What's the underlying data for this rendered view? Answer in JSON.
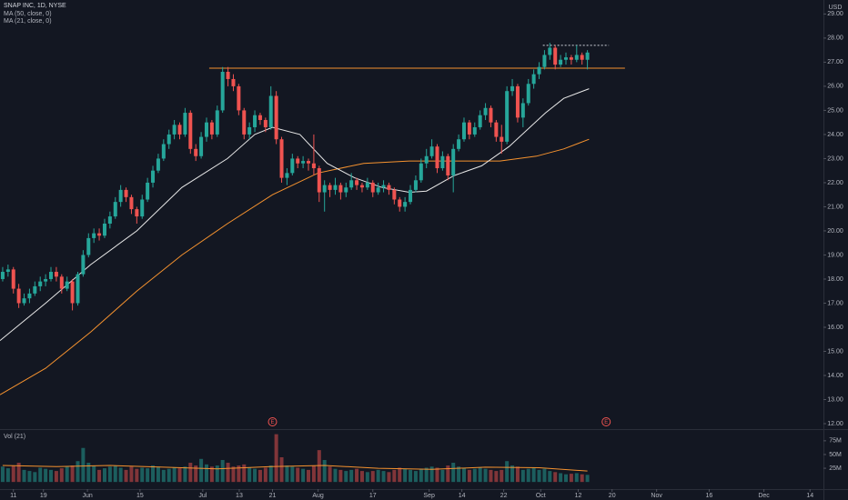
{
  "chart_data": {
    "type": "candlestick",
    "title": "SNAP INC, 1D, NYSE",
    "currency": "USD",
    "up_color": "#26a69a",
    "down_color": "#ef5350",
    "grid": false,
    "xlim": [
      -0.5,
      153
    ],
    "xticks": [
      {
        "value": 2,
        "label": "11"
      },
      {
        "value": 7.6,
        "label": "19"
      },
      {
        "value": 15.8,
        "label": "Jun"
      },
      {
        "value": 25.6,
        "label": "15"
      },
      {
        "value": 37.3,
        "label": "Jul"
      },
      {
        "value": 44.1,
        "label": "13"
      },
      {
        "value": 50.3,
        "label": "21"
      },
      {
        "value": 58.8,
        "label": "Aug"
      },
      {
        "value": 69,
        "label": "17"
      },
      {
        "value": 79.5,
        "label": "Sep"
      },
      {
        "value": 85.6,
        "label": "14"
      },
      {
        "value": 93.4,
        "label": "22"
      },
      {
        "value": 100.3,
        "label": "Oct"
      },
      {
        "value": 107.3,
        "label": "12"
      },
      {
        "value": 113.6,
        "label": "20"
      },
      {
        "value": 121.9,
        "label": "Nov"
      },
      {
        "value": 131.7,
        "label": "16"
      },
      {
        "value": 141.9,
        "label": "Dec"
      },
      {
        "value": 150.5,
        "label": "14"
      }
    ],
    "ylim": [
      11.85,
      29.58
    ],
    "yticks": [
      {
        "value": 12,
        "label": "12.00"
      },
      {
        "value": 13,
        "label": "13.00"
      },
      {
        "value": 14,
        "label": "14.00"
      },
      {
        "value": 15,
        "label": "15.00"
      },
      {
        "value": 16,
        "label": "16.00"
      },
      {
        "value": 17,
        "label": "17.00"
      },
      {
        "value": 18,
        "label": "18.00"
      },
      {
        "value": 19,
        "label": "19.00"
      },
      {
        "value": 20,
        "label": "20.00"
      },
      {
        "value": 21,
        "label": "21.00"
      },
      {
        "value": 22,
        "label": "22.00"
      },
      {
        "value": 23,
        "label": "23.00"
      },
      {
        "value": 24,
        "label": "24.00"
      },
      {
        "value": 25,
        "label": "25.00"
      },
      {
        "value": 26,
        "label": "26.00"
      },
      {
        "value": 27,
        "label": "27.00"
      },
      {
        "value": 28,
        "label": "28.00"
      },
      {
        "value": 29,
        "label": "29.00"
      }
    ],
    "candles": [
      [
        18.0,
        18.5,
        17.9,
        18.3
      ],
      [
        18.3,
        18.6,
        18.1,
        18.4
      ],
      [
        18.4,
        18.5,
        17.4,
        17.6
      ],
      [
        17.6,
        17.8,
        16.8,
        17.0
      ],
      [
        17.0,
        17.4,
        16.9,
        17.2
      ],
      [
        17.2,
        17.6,
        17.0,
        17.4
      ],
      [
        17.4,
        17.9,
        17.3,
        17.7
      ],
      [
        17.7,
        18.1,
        17.5,
        17.9
      ],
      [
        17.9,
        18.2,
        17.7,
        18.0
      ],
      [
        18.0,
        18.5,
        17.9,
        18.3
      ],
      [
        18.3,
        18.5,
        17.9,
        18.1
      ],
      [
        18.1,
        18.2,
        17.4,
        17.6
      ],
      [
        17.6,
        18.1,
        17.5,
        17.9
      ],
      [
        17.9,
        18.0,
        16.7,
        17.0
      ],
      [
        17.0,
        18.3,
        16.9,
        18.2
      ],
      [
        18.2,
        19.2,
        18.1,
        19.0
      ],
      [
        19.0,
        19.9,
        18.9,
        19.7
      ],
      [
        19.7,
        20.1,
        19.5,
        19.9
      ],
      [
        19.9,
        20.1,
        19.6,
        19.8
      ],
      [
        19.8,
        20.5,
        19.7,
        20.3
      ],
      [
        20.3,
        20.8,
        20.1,
        20.6
      ],
      [
        20.6,
        21.4,
        20.5,
        21.2
      ],
      [
        21.2,
        21.9,
        21.0,
        21.7
      ],
      [
        21.7,
        21.8,
        21.2,
        21.4
      ],
      [
        21.4,
        21.5,
        20.7,
        20.9
      ],
      [
        20.9,
        21.0,
        20.3,
        20.6
      ],
      [
        20.6,
        21.5,
        20.5,
        21.3
      ],
      [
        21.3,
        22.2,
        21.2,
        22.0
      ],
      [
        22.0,
        22.7,
        21.8,
        22.5
      ],
      [
        22.5,
        23.2,
        22.4,
        23.0
      ],
      [
        23.0,
        23.8,
        22.9,
        23.6
      ],
      [
        23.6,
        24.2,
        23.4,
        24.0
      ],
      [
        24.0,
        24.6,
        23.8,
        24.4
      ],
      [
        24.4,
        24.5,
        23.8,
        24.0
      ],
      [
        24.0,
        25.1,
        23.9,
        24.9
      ],
      [
        24.9,
        25.0,
        23.2,
        23.4
      ],
      [
        23.4,
        23.6,
        22.9,
        23.1
      ],
      [
        23.1,
        24.1,
        23.0,
        23.9
      ],
      [
        23.9,
        24.7,
        23.7,
        24.5
      ],
      [
        24.5,
        24.6,
        23.8,
        24.0
      ],
      [
        24.0,
        25.2,
        23.9,
        25.0
      ],
      [
        25.0,
        26.8,
        24.9,
        26.6
      ],
      [
        26.6,
        26.8,
        26.0,
        26.3
      ],
      [
        26.3,
        26.5,
        25.8,
        26.0
      ],
      [
        26.0,
        26.1,
        24.8,
        25.0
      ],
      [
        25.0,
        25.1,
        23.8,
        24.0
      ],
      [
        24.0,
        24.5,
        23.8,
        24.3
      ],
      [
        24.3,
        25.0,
        24.1,
        24.8
      ],
      [
        24.8,
        24.9,
        24.4,
        24.6
      ],
      [
        24.6,
        24.7,
        24.1,
        24.3
      ],
      [
        24.3,
        26.0,
        24.2,
        25.6
      ],
      [
        25.6,
        25.8,
        23.6,
        23.8
      ],
      [
        23.8,
        23.9,
        22.0,
        22.2
      ],
      [
        22.2,
        22.6,
        21.9,
        22.4
      ],
      [
        22.4,
        23.2,
        22.3,
        23.0
      ],
      [
        23.0,
        23.1,
        22.6,
        22.8
      ],
      [
        22.8,
        23.1,
        22.6,
        22.9
      ],
      [
        22.9,
        23.0,
        22.5,
        22.8
      ],
      [
        22.8,
        24.0,
        22.3,
        22.6
      ],
      [
        22.6,
        22.7,
        21.2,
        21.6
      ],
      [
        21.6,
        22.1,
        20.8,
        21.9
      ],
      [
        21.9,
        22.0,
        21.4,
        21.7
      ],
      [
        21.7,
        22.2,
        21.5,
        21.9
      ],
      [
        21.9,
        22.0,
        21.3,
        21.6
      ],
      [
        21.6,
        22.0,
        21.4,
        21.8
      ],
      [
        21.8,
        22.4,
        21.7,
        22.1
      ],
      [
        22.1,
        22.2,
        21.7,
        21.9
      ],
      [
        21.9,
        22.0,
        21.6,
        21.8
      ],
      [
        21.8,
        22.2,
        21.7,
        22.0
      ],
      [
        22.0,
        22.1,
        21.4,
        21.6
      ],
      [
        21.6,
        22.0,
        21.5,
        21.8
      ],
      [
        21.8,
        22.1,
        21.6,
        21.9
      ],
      [
        21.9,
        22.0,
        21.5,
        21.7
      ],
      [
        21.7,
        21.8,
        21.1,
        21.3
      ],
      [
        21.3,
        21.4,
        20.8,
        21.0
      ],
      [
        21.0,
        21.4,
        20.8,
        21.2
      ],
      [
        21.2,
        21.9,
        21.1,
        21.7
      ],
      [
        21.7,
        22.3,
        21.6,
        22.1
      ],
      [
        22.1,
        23.0,
        22.0,
        22.8
      ],
      [
        22.8,
        23.4,
        22.6,
        23.1
      ],
      [
        23.1,
        23.8,
        23.0,
        23.5
      ],
      [
        23.5,
        23.6,
        22.4,
        22.6
      ],
      [
        22.6,
        23.3,
        22.5,
        23.1
      ],
      [
        23.1,
        23.2,
        22.1,
        22.3
      ],
      [
        22.3,
        23.6,
        21.6,
        23.4
      ],
      [
        23.4,
        24.0,
        23.3,
        23.8
      ],
      [
        23.8,
        24.7,
        23.7,
        24.5
      ],
      [
        24.5,
        24.6,
        23.8,
        24.0
      ],
      [
        24.0,
        24.5,
        23.9,
        24.3
      ],
      [
        24.3,
        25.0,
        24.2,
        24.8
      ],
      [
        24.8,
        25.3,
        24.6,
        25.1
      ],
      [
        25.1,
        25.2,
        24.3,
        24.5
      ],
      [
        24.5,
        24.6,
        23.7,
        23.9
      ],
      [
        23.9,
        24.4,
        23.2,
        23.7
      ],
      [
        23.7,
        26.0,
        23.6,
        25.8
      ],
      [
        25.8,
        26.3,
        25.6,
        26.0
      ],
      [
        26.0,
        26.1,
        24.5,
        24.7
      ],
      [
        24.7,
        25.5,
        24.3,
        25.3
      ],
      [
        25.3,
        26.3,
        25.2,
        26.1
      ],
      [
        26.1,
        26.7,
        25.9,
        26.5
      ],
      [
        26.5,
        27.0,
        26.3,
        26.8
      ],
      [
        26.8,
        27.5,
        26.7,
        27.3
      ],
      [
        27.3,
        27.8,
        27.1,
        27.6
      ],
      [
        27.6,
        27.7,
        26.7,
        26.9
      ],
      [
        26.9,
        27.3,
        26.8,
        27.1
      ],
      [
        27.1,
        27.4,
        26.9,
        27.2
      ],
      [
        27.2,
        27.3,
        26.9,
        27.1
      ],
      [
        27.1,
        27.7,
        27.0,
        27.3
      ],
      [
        27.3,
        27.4,
        26.9,
        27.1
      ],
      [
        27.1,
        27.5,
        26.7,
        27.4
      ]
    ],
    "moving_averages": [
      {
        "name": "MA (50, close, 0)",
        "color": "#f5922f",
        "x": [
          -0.5,
          8,
          16.4,
          25,
          33.4,
          41.9,
          50.3,
          58.8,
          67.3,
          75.8,
          84.2,
          92.7,
          99.5,
          104.6,
          109.3
        ],
        "values": [
          13.2,
          14.3,
          15.8,
          17.5,
          19.0,
          20.3,
          21.5,
          22.4,
          22.8,
          22.9,
          22.9,
          22.9,
          23.1,
          23.4,
          23.8
        ]
      },
      {
        "name": "MA (21, close, 0)",
        "color": "#e8e8e8",
        "x": [
          -0.5,
          8,
          16.4,
          25,
          33.4,
          41.9,
          47,
          50.3,
          55.4,
          60.5,
          65.6,
          70.7,
          75.8,
          79,
          84.2,
          89.3,
          94.4,
          101.2,
          104.6,
          109.3
        ],
        "values": [
          15.45,
          17.0,
          18.6,
          20.0,
          21.8,
          23.0,
          24.0,
          24.3,
          24.0,
          22.8,
          22.2,
          21.8,
          21.6,
          21.65,
          22.3,
          22.7,
          23.5,
          24.9,
          25.5,
          25.9
        ]
      }
    ],
    "levels": [
      {
        "y": 26.75,
        "x": [
          38.5,
          116
        ],
        "color": "#f5922f",
        "style": "solid"
      },
      {
        "y": 27.7,
        "x": [
          100.7,
          113
        ],
        "color": "#d1d4dc",
        "style": "dashed"
      }
    ],
    "events": [
      {
        "x": 50.3,
        "label": "E"
      },
      {
        "x": 112.5,
        "label": "E"
      }
    ],
    "volume": {
      "name": "Vol (21)",
      "ylim": [
        -8,
        93
      ],
      "yticks": [
        {
          "value": 25,
          "label": "25M"
        },
        {
          "value": 50,
          "label": "50M"
        },
        {
          "value": 75,
          "label": "75M"
        }
      ],
      "values": [
        28,
        25,
        30,
        35,
        22,
        20,
        18,
        26,
        24,
        22,
        20,
        25,
        28,
        30,
        38,
        62,
        35,
        30,
        22,
        25,
        28,
        30,
        26,
        22,
        28,
        24,
        26,
        25,
        30,
        28,
        22,
        24,
        26,
        25,
        28,
        35,
        30,
        42,
        32,
        28,
        30,
        40,
        35,
        28,
        30,
        32,
        26,
        24,
        22,
        26,
        30,
        87,
        45,
        30,
        28,
        26,
        24,
        22,
        30,
        58,
        40,
        28,
        24,
        22,
        20,
        22,
        24,
        20,
        18,
        20,
        22,
        20,
        18,
        22,
        26,
        24,
        22,
        20,
        24,
        26,
        28,
        26,
        22,
        30,
        35,
        28,
        26,
        22,
        24,
        26,
        24,
        22,
        20,
        22,
        38,
        30,
        28,
        22,
        24,
        26,
        22,
        24,
        20,
        18,
        16,
        14,
        15,
        16,
        14,
        13
      ],
      "ma": {
        "color": "#f5922f",
        "x": [
          0,
          10,
          20,
          30,
          40,
          50,
          60,
          70,
          80,
          90,
          100,
          109
        ],
        "values": [
          30,
          28,
          30,
          27,
          24,
          28,
          30,
          25,
          23,
          27,
          26,
          20
        ]
      }
    }
  }
}
